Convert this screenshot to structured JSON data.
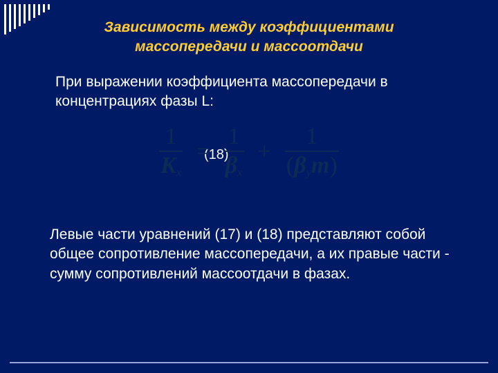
{
  "decor": {
    "stripe_count": 10,
    "stripe_start_height": 44,
    "stripe_step": -4,
    "stripe_color": "#ffffff"
  },
  "colors": {
    "background": "#001a66",
    "title": "#ffcc33",
    "body_text": "#ffffff",
    "equation": "#0e2a57",
    "footer_line": "#9aa6d9"
  },
  "title": {
    "line1": "Зависимость между коэффициентами",
    "line2": "массопередачи и массоотдачи"
  },
  "intro": "При выражении коэффициента массопередачи в концентрациях фазы L:",
  "equation": {
    "label": "(18)",
    "lhs_num": "1",
    "lhs_den_var": "K",
    "lhs_den_sub": "x",
    "eq_sign": "=",
    "t1_num": "1",
    "t1_den_var": "β",
    "t1_den_sub": "x",
    "plus": "+",
    "t2_num": "1",
    "t2_den_open": "(",
    "t2_den_var": "β",
    "t2_den_sub": "y",
    "t2_den_m": "m",
    "t2_den_close": ")"
  },
  "conclusion": "Левые части уравнений (17)  и (18) представляют собой общее сопротивление массопередачи, а их правые части - сумму сопротивлений массоотдачи в фазах."
}
